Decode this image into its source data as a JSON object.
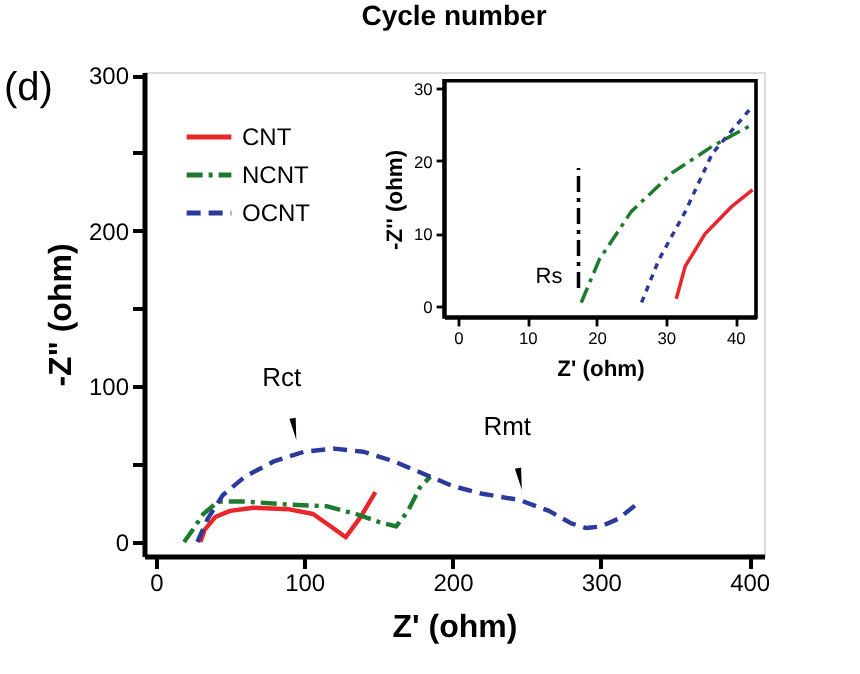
{
  "chart_data": [
    {
      "type": "line",
      "title": "Cycle number",
      "xlabel": "Z' (ohm)",
      "ylabel": "-Z\" (ohm)",
      "xlim": [
        -8,
        410
      ],
      "ylim": [
        -9,
        302
      ],
      "xticks": [
        0,
        100,
        200,
        300,
        400
      ],
      "yticks": [
        0,
        {
          "value": 50,
          "label": null
        },
        100,
        {
          "value": 150,
          "label": null
        },
        200,
        {
          "value": 250,
          "label": null
        },
        300
      ],
      "legend": "top left",
      "grid": false,
      "marker": "none",
      "annotations": [
        "(d)",
        {
          "text": "Rct",
          "x": 93,
          "y": 62
        },
        {
          "text": "Rmt",
          "x": 245,
          "y": 30
        }
      ],
      "series": [
        {
          "name": "CNT",
          "color": "#e8262b",
          "line_style": "solid",
          "x": [
            30,
            33,
            40,
            50,
            66,
            90,
            106,
            118,
            128,
            138,
            148
          ],
          "values": [
            0,
            8,
            16,
            20,
            22,
            21,
            18,
            10,
            3,
            16,
            32
          ]
        },
        {
          "name": "NCNT",
          "color": "#1e7b2e",
          "line_style": "dashdot",
          "x": [
            19,
            25,
            32,
            42,
            60,
            90,
            115,
            135,
            150,
            162,
            170,
            178,
            185
          ],
          "values": [
            0,
            8,
            18,
            26,
            26,
            24,
            23,
            18,
            13,
            10,
            20,
            35,
            42
          ]
        },
        {
          "name": "OCNT",
          "color": "#2b3a9c",
          "line_style": "dashed",
          "x": [
            28,
            35,
            45,
            60,
            80,
            100,
            120,
            140,
            160,
            180,
            200,
            220,
            245,
            265,
            280,
            290,
            300,
            312,
            325
          ],
          "values": [
            0,
            15,
            30,
            42,
            52,
            58,
            60,
            58,
            52,
            44,
            36,
            31,
            27,
            20,
            12,
            9,
            10,
            15,
            25
          ]
        }
      ]
    },
    {
      "type": "line",
      "xlabel": "Z' (ohm)",
      "ylabel": "-Z'' (ohm)",
      "xlim": [
        -2,
        43
      ],
      "ylim": [
        -1.5,
        31
      ],
      "xticks": [
        0,
        10,
        20,
        30,
        40
      ],
      "yticks": [
        0,
        10,
        20,
        30
      ],
      "grid": false,
      "marker": "none",
      "annotations": [
        {
          "text": "Rs",
          "x": 17.4,
          "y": 4
        }
      ],
      "series": [
        {
          "color": "#e8262b",
          "line_style": "solid",
          "x": [
            31.5,
            32.8,
            35.7,
            39.6,
            42.5
          ],
          "values": [
            1,
            5.5,
            10,
            13.8,
            16
          ]
        },
        {
          "color": "#1e7b2e",
          "line_style": "dashdot",
          "x": [
            17.8,
            20.4,
            25,
            31,
            36.7,
            42.5
          ],
          "values": [
            0.5,
            6.4,
            13,
            18.4,
            22,
            25
          ]
        },
        {
          "color": "#2b3a9c",
          "line_style": "dotted",
          "x": [
            26.5,
            29,
            32.8,
            36.7,
            42.5
          ],
          "values": [
            0.5,
            6.4,
            13,
            21,
            27.5
          ]
        },
        {
          "color": "#000000",
          "line_style": "dashdot",
          "x": [
            17.4,
            17.4
          ],
          "values": [
            2.5,
            19
          ]
        }
      ]
    }
  ]
}
